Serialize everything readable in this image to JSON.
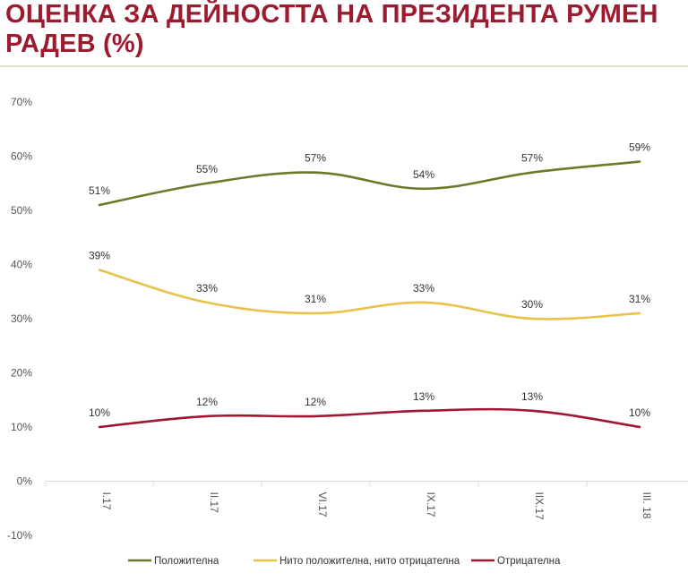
{
  "header": {
    "title": "ОЦЕНКА ЗА ДЕЙНОСТТА НА ПРЕЗИДЕНТА РУМЕН РАДЕВ (%)"
  },
  "chart_data": {
    "type": "line",
    "title": "ОЦЕНКА ЗА ДЕЙНОСТТА НА ПРЕЗИДЕНТА РУМЕН РАДЕВ (%)",
    "categories": [
      "I.17",
      "II.17",
      "VI.17",
      "IX.17",
      "IIX.17",
      "III. 18"
    ],
    "ylim": [
      -10,
      70
    ],
    "yticks": [
      70,
      60,
      50,
      40,
      30,
      20,
      10,
      0,
      -10
    ],
    "ytick_labels": [
      "70%",
      "60%",
      "50%",
      "40%",
      "30%",
      "20%",
      "10%",
      "0%",
      "-10%"
    ],
    "grid": false,
    "legend_position": "bottom",
    "series": [
      {
        "name": "Положителна",
        "color": "#6b7a2a",
        "values": [
          51,
          55,
          57,
          54,
          57,
          59
        ],
        "labels": [
          "51%",
          "55%",
          "57%",
          "54%",
          "57%",
          "59%"
        ]
      },
      {
        "name": "Нито положителна, нито отрицателна",
        "color": "#e8c24a",
        "values": [
          39,
          33,
          31,
          33,
          30,
          31
        ],
        "labels": [
          "39%",
          "33%",
          "31%",
          "33%",
          "30%",
          "31%"
        ]
      },
      {
        "name": "Отрицателна",
        "color": "#a01830",
        "values": [
          10,
          12,
          12,
          13,
          13,
          10
        ],
        "labels": [
          "10%",
          "12%",
          "12%",
          "13%",
          "13%",
          "10%"
        ]
      }
    ]
  }
}
